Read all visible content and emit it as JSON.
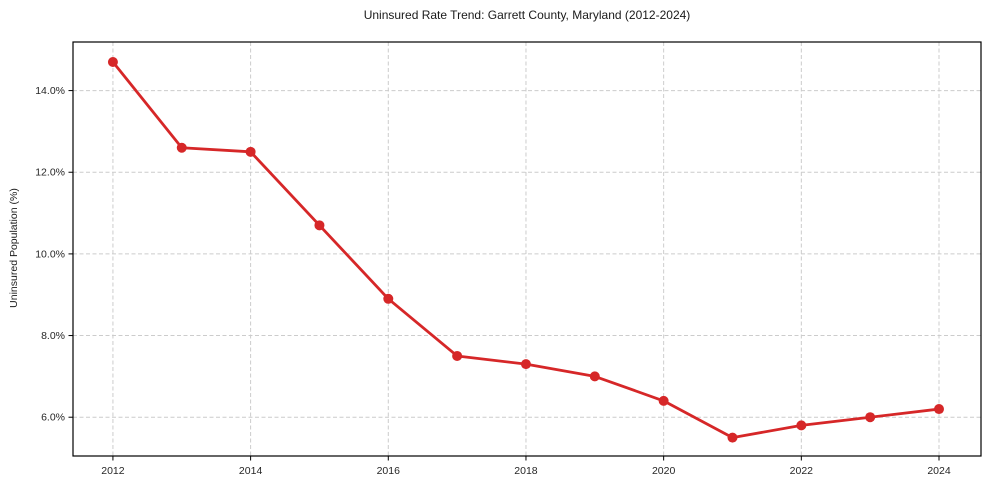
{
  "chart_data": {
    "type": "line",
    "title": "Uninsured Rate Trend: Garrett County, Maryland (2012-2024)",
    "xlabel": "",
    "ylabel": "Uninsured Population (%)",
    "x": [
      2012,
      2013,
      2014,
      2015,
      2016,
      2017,
      2018,
      2019,
      2020,
      2021,
      2022,
      2023,
      2024
    ],
    "values": [
      14.7,
      12.6,
      12.5,
      10.7,
      8.9,
      7.5,
      7.3,
      7.0,
      6.4,
      5.5,
      5.8,
      6.0,
      6.2
    ],
    "xlim": [
      2011.42,
      2024.61
    ],
    "ylim": [
      5.05,
      15.19
    ],
    "xticks": [
      2012,
      2014,
      2016,
      2018,
      2020,
      2022,
      2024
    ],
    "xtick_labels": [
      "2012",
      "2014",
      "2016",
      "2018",
      "2020",
      "2022",
      "2024"
    ],
    "yticks": [
      6,
      8,
      10,
      12,
      14
    ],
    "ytick_labels": [
      "6.0%",
      "8.0%",
      "10.0%",
      "12.0%",
      "14.0%"
    ],
    "grid": true,
    "grid_style": "dashed",
    "legend": null,
    "colors": {
      "line": "#d62728",
      "marker": "#d62728",
      "grid": "#cccccc",
      "axis_frame": "#000000",
      "tick": "#000000",
      "text": "#262626",
      "background": "#ffffff"
    }
  }
}
